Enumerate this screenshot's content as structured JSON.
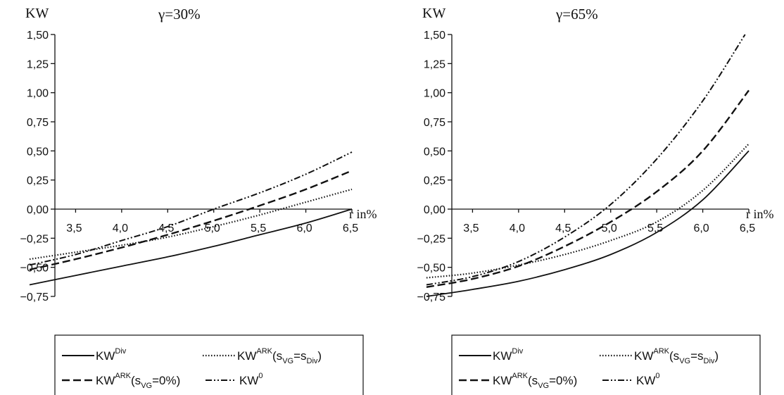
{
  "chart_data": [
    {
      "type": "line",
      "title": "γ=30%",
      "ylabel": "KW",
      "xlabel": "r in%",
      "xlim": [
        3.0,
        6.5
      ],
      "ylim": [
        -0.75,
        1.5
      ],
      "xticks": [
        "3,5",
        "4,0",
        "4,5",
        "5,0",
        "5,5",
        "6,0",
        "6,5"
      ],
      "yticks": [
        "1,50",
        "1,25",
        "1,00",
        "0,75",
        "0,50",
        "0,25",
        "0,00",
        "−0,25",
        "−0,50",
        "−0,75"
      ],
      "x": [
        3.0,
        3.5,
        4.0,
        4.5,
        5.0,
        5.5,
        6.0,
        6.5
      ],
      "series": [
        {
          "name": "KW^Div",
          "style": "solid",
          "values": [
            -0.65,
            -0.57,
            -0.49,
            -0.41,
            -0.32,
            -0.22,
            -0.12,
            0.0
          ]
        },
        {
          "name": "KW^ARK(s_VG=s_Div)",
          "style": "dotted",
          "values": [
            -0.43,
            -0.37,
            -0.31,
            -0.24,
            -0.15,
            -0.05,
            0.06,
            0.17
          ]
        },
        {
          "name": "KW^ARK(s_VG=0%)",
          "style": "dashed",
          "values": [
            -0.52,
            -0.43,
            -0.33,
            -0.22,
            -0.1,
            0.03,
            0.17,
            0.33
          ]
        },
        {
          "name": "KW^0",
          "style": "dashdotdot",
          "values": [
            -0.48,
            -0.39,
            -0.27,
            -0.15,
            0.0,
            0.14,
            0.3,
            0.49
          ]
        }
      ],
      "legend_position": "bottom"
    },
    {
      "type": "line",
      "title": "γ=65%",
      "ylabel": "KW",
      "xlabel": "r in%",
      "xlim": [
        3.0,
        6.5
      ],
      "ylim": [
        -0.75,
        1.5
      ],
      "xticks": [
        "3,5",
        "4,0",
        "4,5",
        "5,0",
        "5,5",
        "6,0",
        "6,5"
      ],
      "yticks": [
        "1,50",
        "1,25",
        "1,00",
        "0,75",
        "0,50",
        "0,25",
        "0,00",
        "−0,25",
        "−0,50",
        "−0,75"
      ],
      "x": [
        3.0,
        3.5,
        4.0,
        4.5,
        5.0,
        5.5,
        6.0,
        6.5
      ],
      "series": [
        {
          "name": "KW^Div",
          "style": "solid",
          "values": [
            -0.75,
            -0.69,
            -0.62,
            -0.52,
            -0.39,
            -0.2,
            0.08,
            0.5
          ]
        },
        {
          "name": "KW^ARK(s_VG=s_Div)",
          "style": "dotted",
          "values": [
            -0.59,
            -0.55,
            -0.48,
            -0.39,
            -0.27,
            -0.11,
            0.16,
            0.56
          ]
        },
        {
          "name": "KW^ARK(s_VG=0%)",
          "style": "dashed",
          "values": [
            -0.67,
            -0.6,
            -0.49,
            -0.32,
            -0.11,
            0.15,
            0.5,
            1.02
          ]
        },
        {
          "name": "KW^0",
          "style": "dashdotdot",
          "values": [
            -0.65,
            -0.58,
            -0.45,
            -0.24,
            0.04,
            0.43,
            0.93,
            1.55
          ]
        }
      ],
      "legend_position": "bottom"
    }
  ],
  "legend": {
    "kwdiv": {
      "base": "KW",
      "sup": "Div"
    },
    "ark_div": {
      "base": "KW",
      "sup": "ARK",
      "open": "(s",
      "sub1": "VG",
      "mid": "=s",
      "sub2": "Div",
      "close": ")"
    },
    "ark_zero": {
      "base": "KW",
      "sup": "ARK",
      "open": "(s",
      "sub1": "VG",
      "mid": "=0%)"
    },
    "kw0": {
      "base": "KW",
      "sup": "0"
    }
  },
  "colors": {
    "ink": "#111111",
    "background": "#ffffff"
  }
}
